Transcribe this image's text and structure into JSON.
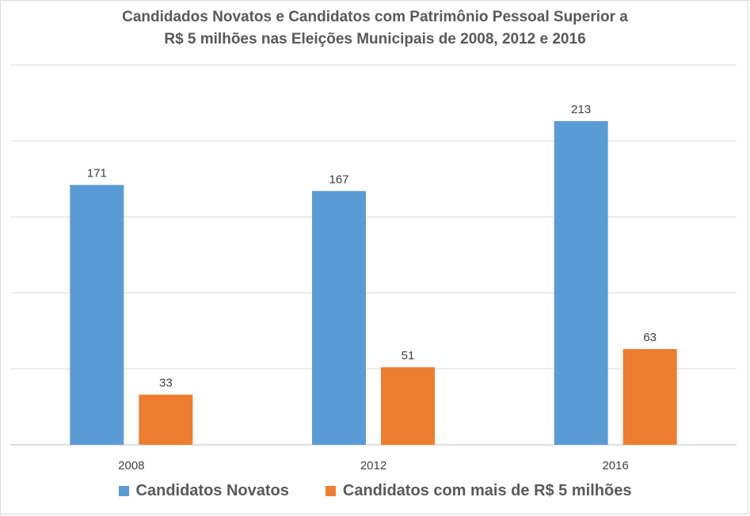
{
  "chart_data": {
    "type": "bar",
    "title_lines": [
      "Candidados Novatos e Candidatos com Patrimônio Pessoal Superior a",
      "R$ 5 milhões nas Eleições Municipais de 2008, 2012 e 2016"
    ],
    "categories": [
      "2008",
      "2012",
      "2016"
    ],
    "series": [
      {
        "name": "Candidatos Novatos",
        "color": "#5b9bd5",
        "values": [
          171,
          167,
          213
        ]
      },
      {
        "name": "Candidatos com mais de R$ 5 milhões",
        "color": "#ed7d31",
        "values": [
          33,
          51,
          63
        ]
      }
    ],
    "ylim": [
      0,
      250
    ],
    "grid": true,
    "legend_position": "bottom",
    "xlabel": "",
    "ylabel": ""
  }
}
